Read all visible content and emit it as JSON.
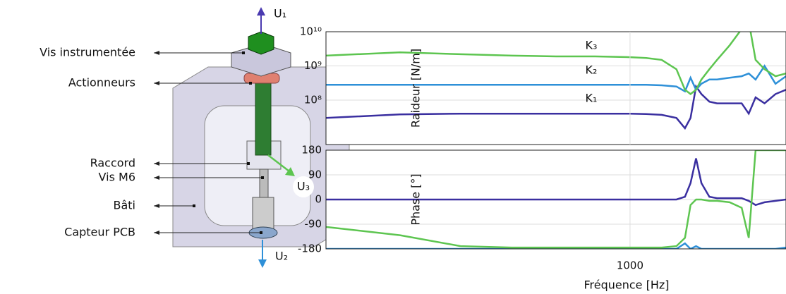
{
  "diagram": {
    "parts": [
      "Vis instrumentée",
      "Actionneurs",
      "Raccord",
      "Vis M6",
      "Bâti",
      "Capteur PCB"
    ],
    "directions": [
      "U₁",
      "U₂",
      "U₃"
    ]
  },
  "chart_data": [
    {
      "type": "line",
      "ylabel": "Raideur [N/m]",
      "xscale": "log",
      "yscale": "log",
      "grid": true,
      "x": [
        400,
        500,
        600,
        700,
        800,
        900,
        1000,
        1050,
        1100,
        1150,
        1180,
        1200,
        1220,
        1240,
        1270,
        1300,
        1350,
        1400,
        1430,
        1460,
        1500,
        1550,
        1600
      ],
      "xlim": [
        400,
        1600
      ],
      "ylim": [
        5000000,
        10000000000
      ],
      "yticks": [
        {
          "value": 100000000,
          "label": "10⁸"
        },
        {
          "value": 1000000000,
          "label": "10⁹"
        },
        {
          "value": 10000000000,
          "label": "10¹⁰"
        }
      ],
      "series": [
        {
          "name": "K₁",
          "color": "#3a2fa0",
          "values": [
            30000000,
            38000000,
            40000000,
            40000000,
            40000000,
            40000000,
            40000000,
            39000000,
            37000000,
            30000000,
            15000000,
            30000000,
            250000000,
            150000000,
            90000000,
            80000000,
            80000000,
            80000000,
            40000000,
            120000000,
            80000000,
            150000000,
            200000000
          ]
        },
        {
          "name": "K₂",
          "color": "#2e90d8",
          "values": [
            280000000,
            280000000,
            280000000,
            280000000,
            280000000,
            280000000,
            280000000,
            280000000,
            270000000,
            250000000,
            180000000,
            450000000,
            200000000,
            300000000,
            400000000,
            400000000,
            450000000,
            500000000,
            600000000,
            400000000,
            1000000000,
            300000000,
            500000000
          ]
        },
        {
          "name": "K₃",
          "color": "#5dc550",
          "values": [
            2000000000,
            2500000000,
            2200000000,
            2000000000,
            1900000000,
            1900000000,
            1800000000,
            1700000000,
            1500000000,
            800000000,
            200000000,
            150000000,
            200000000,
            400000000,
            800000000,
            1500000000,
            4000000000,
            12000000000,
            20000000000,
            1500000000,
            800000000,
            500000000,
            600000000
          ]
        }
      ]
    },
    {
      "type": "line",
      "xlabel": "Fréquence [Hz]",
      "ylabel": "Phase [°]",
      "xscale": "log",
      "grid": true,
      "x": [
        400,
        500,
        600,
        700,
        800,
        900,
        1000,
        1050,
        1100,
        1150,
        1180,
        1200,
        1220,
        1240,
        1270,
        1300,
        1350,
        1400,
        1430,
        1460,
        1500,
        1550,
        1600
      ],
      "xlim": [
        400,
        1600
      ],
      "ylim": [
        -180,
        180
      ],
      "xticks": [
        1000
      ],
      "yticks": [
        -180,
        -90,
        0,
        90,
        180
      ],
      "series": [
        {
          "name": "K₁",
          "color": "#3a2fa0",
          "values": [
            0,
            0,
            0,
            0,
            0,
            0,
            0,
            0,
            0,
            0,
            10,
            60,
            150,
            60,
            10,
            5,
            5,
            5,
            -5,
            -20,
            -10,
            -5,
            0
          ]
        },
        {
          "name": "K₂",
          "color": "#2e90d8",
          "values": [
            -180,
            -180,
            -180,
            -180,
            -180,
            -180,
            -180,
            -180,
            -180,
            -180,
            -160,
            -180,
            -170,
            -180,
            -180,
            -180,
            -180,
            -180,
            -180,
            -180,
            -180,
            -180,
            -175
          ]
        },
        {
          "name": "K₃",
          "color": "#5dc550",
          "values": [
            -100,
            -130,
            -170,
            -175,
            -175,
            -175,
            -175,
            -175,
            -175,
            -170,
            -140,
            -20,
            0,
            0,
            -5,
            -5,
            -10,
            -30,
            -140,
            180,
            180,
            180,
            180
          ]
        }
      ]
    }
  ]
}
